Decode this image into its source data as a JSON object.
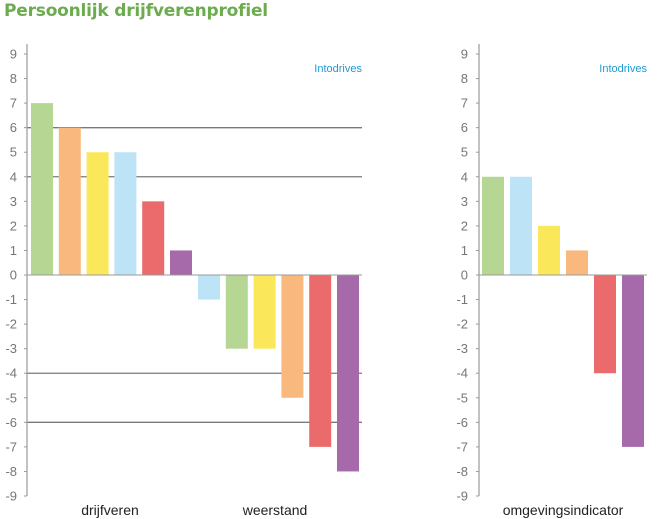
{
  "title": "Persoonlijk drijfverenprofiel",
  "colors": {
    "title": "#6cac4e",
    "brand": "#1f9ad6",
    "axis": "#9a9a9a",
    "gridline": "#7a7a7a",
    "green": "#b5d793",
    "orange": "#f9b97e",
    "yellow": "#fbe85a",
    "lightblue": "#bde3f7",
    "red": "#eb6b6c",
    "purple": "#a66aab"
  },
  "chart_data": [
    {
      "type": "bar",
      "brand": "Intodrives",
      "ylim": [
        -9,
        9
      ],
      "yticks": [
        "9",
        "8",
        "7",
        "6",
        "5",
        "4",
        "3",
        "2",
        "1",
        "0",
        "-1",
        "-2",
        "-3",
        "-4",
        "-5",
        "-6",
        "-7",
        "-8",
        "-9"
      ],
      "gridlines": [
        6,
        4,
        -4,
        -6
      ],
      "groups": [
        {
          "label": "drijfveren",
          "bars": [
            {
              "value": 7,
              "color": "green"
            },
            {
              "value": 6,
              "color": "orange"
            },
            {
              "value": 5,
              "color": "yellow"
            },
            {
              "value": 5,
              "color": "lightblue"
            },
            {
              "value": 3,
              "color": "red"
            },
            {
              "value": 1,
              "color": "purple"
            }
          ]
        },
        {
          "label": "weerstand",
          "bars": [
            {
              "value": -1,
              "color": "lightblue"
            },
            {
              "value": -3,
              "color": "green"
            },
            {
              "value": -3,
              "color": "yellow"
            },
            {
              "value": -5,
              "color": "orange"
            },
            {
              "value": -7,
              "color": "red"
            },
            {
              "value": -8,
              "color": "purple"
            }
          ]
        }
      ]
    },
    {
      "type": "bar",
      "brand": "Intodrives",
      "ylim": [
        -9,
        9
      ],
      "yticks": [
        "9",
        "8",
        "7",
        "6",
        "5",
        "4",
        "3",
        "2",
        "1",
        "0",
        "-1",
        "-2",
        "-3",
        "-4",
        "-5",
        "-6",
        "-7",
        "-8",
        "-9"
      ],
      "gridlines": [],
      "groups": [
        {
          "label": "omgevingsindicator",
          "bars": [
            {
              "value": 4,
              "color": "green"
            },
            {
              "value": 4,
              "color": "lightblue"
            },
            {
              "value": 2,
              "color": "yellow"
            },
            {
              "value": 1,
              "color": "orange"
            },
            {
              "value": -4,
              "color": "red"
            },
            {
              "value": -7,
              "color": "purple"
            }
          ]
        }
      ]
    }
  ]
}
